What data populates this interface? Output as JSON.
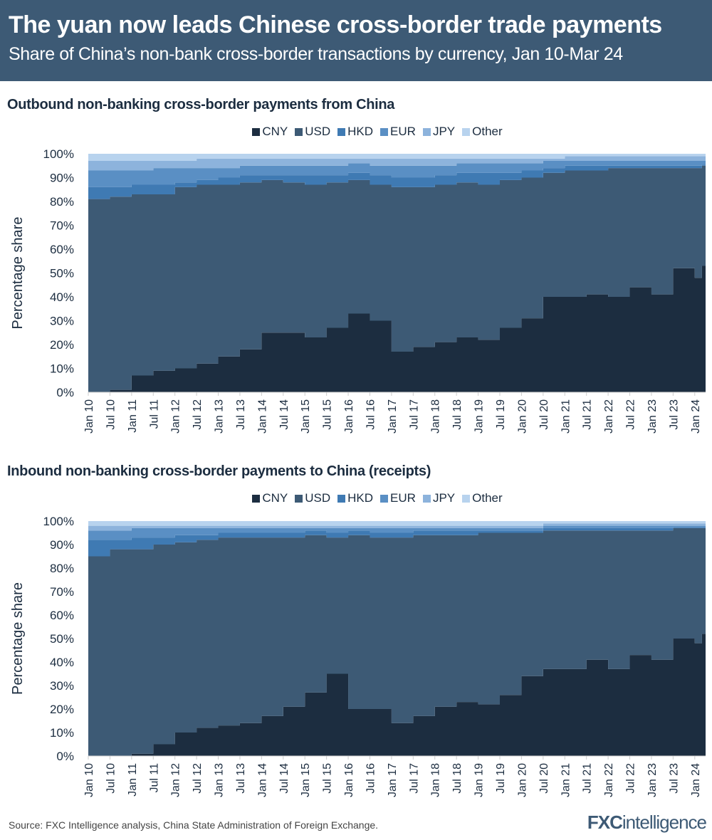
{
  "header": {
    "title": "The yuan now leads Chinese cross-border trade payments",
    "subtitle": "Share of China’s non-bank cross-border transactions by currency, Jan 10-Mar 24"
  },
  "colors": {
    "CNY": "#1c2d40",
    "USD": "#3d5a75",
    "HKD": "#3f7ab3",
    "EUR": "#5a8fc4",
    "JPY": "#8db3dc",
    "Other": "#b8d3ee"
  },
  "chart_data": [
    {
      "type": "area",
      "stacked": true,
      "title": "Outbound non-banking cross-border payments from China",
      "ylabel": "Percentage share",
      "ylim": [
        0,
        100
      ],
      "yticks": [
        "0%",
        "10%",
        "20%",
        "30%",
        "40%",
        "50%",
        "60%",
        "70%",
        "80%",
        "90%",
        "100%"
      ],
      "legend": "top",
      "x": [
        "Jan 10",
        "Jul 10",
        "Jan 11",
        "Jul 11",
        "Jan 12",
        "Jul 12",
        "Jan 13",
        "Jul 13",
        "Jan 14",
        "Jul 14",
        "Jan 15",
        "Jul 15",
        "Jan 16",
        "Jul 16",
        "Jan 17",
        "Jul 17",
        "Jan 18",
        "Jul 18",
        "Jan 19",
        "Jul 19",
        "Jan 20",
        "Jul 20",
        "Jan 21",
        "Jul 21",
        "Jan 22",
        "Jul 22",
        "Jan 23",
        "Jul 23",
        "Jan 24",
        "Mar 24"
      ],
      "xticks": [
        "Jan 10",
        "Jul 10",
        "Jan 11",
        "Jul 11",
        "Jan 12",
        "Jul 12",
        "Jan 13",
        "Jul 13",
        "Jan 14",
        "Jul 14",
        "Jan 15",
        "Jul 15",
        "Jan 16",
        "Jul 16",
        "Jan 17",
        "Jul 17",
        "Jan 18",
        "Jul 18",
        "Jan 19",
        "Jul 19",
        "Jan 20",
        "Jul 20",
        "Jan 21",
        "Jul 21",
        "Jan 22",
        "Jul 22",
        "Jan 23",
        "Jul 23",
        "Jan 24"
      ],
      "series": [
        {
          "name": "CNY",
          "values": [
            0,
            1,
            7,
            9,
            10,
            12,
            15,
            18,
            25,
            25,
            23,
            27,
            33,
            30,
            17,
            19,
            21,
            23,
            22,
            27,
            31,
            40,
            40,
            41,
            40,
            44,
            41,
            52,
            48,
            53
          ]
        },
        {
          "name": "USD",
          "values": [
            81,
            81,
            76,
            74,
            76,
            75,
            72,
            70,
            64,
            63,
            64,
            61,
            56,
            57,
            69,
            67,
            66,
            65,
            65,
            62,
            59,
            52,
            53,
            52,
            54,
            50,
            53,
            42,
            46,
            42
          ]
        },
        {
          "name": "HKD",
          "values": [
            5,
            4,
            4,
            4,
            2,
            2,
            3,
            3,
            2,
            3,
            4,
            3,
            3,
            4,
            4,
            4,
            4,
            4,
            5,
            3,
            3,
            2,
            2,
            2,
            1,
            1,
            1,
            1,
            1,
            0.5
          ]
        },
        {
          "name": "EUR",
          "values": [
            7,
            7,
            6,
            7,
            6,
            5,
            4,
            4,
            4,
            4,
            4,
            4,
            4,
            4,
            5,
            5,
            4,
            4,
            4,
            4,
            3,
            3,
            2,
            2,
            2,
            2,
            2,
            2,
            2,
            1.5
          ]
        },
        {
          "name": "JPY",
          "values": [
            4,
            4,
            4,
            3,
            3,
            4,
            4,
            3,
            3,
            3,
            3,
            3,
            2,
            3,
            3,
            3,
            3,
            2,
            2,
            2,
            2,
            1,
            2,
            2,
            2,
            2,
            2,
            2,
            2,
            2
          ]
        },
        {
          "name": "Other",
          "values": [
            3,
            3,
            3,
            3,
            3,
            2,
            2,
            2,
            2,
            2,
            2,
            2,
            2,
            2,
            2,
            2,
            2,
            2,
            2,
            2,
            2,
            2,
            1,
            1,
            1,
            1,
            1,
            1,
            1,
            1
          ]
        }
      ]
    },
    {
      "type": "area",
      "stacked": true,
      "title": "Inbound non-banking cross-border payments to China (receipts)",
      "ylabel": "Percentage share",
      "ylim": [
        0,
        100
      ],
      "yticks": [
        "0%",
        "10%",
        "20%",
        "30%",
        "40%",
        "50%",
        "60%",
        "70%",
        "80%",
        "90%",
        "100%"
      ],
      "legend": "top",
      "x": [
        "Jan 10",
        "Jul 10",
        "Jan 11",
        "Jul 11",
        "Jan 12",
        "Jul 12",
        "Jan 13",
        "Jul 13",
        "Jan 14",
        "Jul 14",
        "Jan 15",
        "Jul 15",
        "Jan 16",
        "Jul 16",
        "Jan 17",
        "Jul 17",
        "Jan 18",
        "Jul 18",
        "Jan 19",
        "Jul 19",
        "Jan 20",
        "Jul 20",
        "Jan 21",
        "Jul 21",
        "Jan 22",
        "Jul 22",
        "Jan 23",
        "Jul 23",
        "Jan 24",
        "Mar 24"
      ],
      "xticks": [
        "Jan 10",
        "Jul 10",
        "Jan 11",
        "Jul 11",
        "Jan 12",
        "Jul 12",
        "Jan 13",
        "Jul 13",
        "Jan 14",
        "Jul 14",
        "Jan 15",
        "Jul 15",
        "Jan 16",
        "Jul 16",
        "Jan 17",
        "Jul 17",
        "Jan 18",
        "Jul 18",
        "Jan 19",
        "Jul 19",
        "Jan 20",
        "Jul 20",
        "Jan 21",
        "Jul 21",
        "Jan 22",
        "Jul 22",
        "Jan 23",
        "Jul 23",
        "Jan 24"
      ],
      "series": [
        {
          "name": "CNY",
          "values": [
            0,
            0,
            1,
            5,
            10,
            12,
            13,
            14,
            17,
            21,
            27,
            35,
            20,
            20,
            14,
            17,
            21,
            23,
            22,
            26,
            34,
            37,
            37,
            41,
            37,
            43,
            41,
            50,
            48,
            52
          ]
        },
        {
          "name": "USD",
          "values": [
            85,
            88,
            87,
            85,
            81,
            80,
            80,
            79,
            76,
            72,
            67,
            58,
            74,
            73,
            79,
            77,
            73,
            71,
            73,
            69,
            61,
            59,
            59,
            55,
            59,
            53,
            55,
            47,
            49,
            45
          ]
        },
        {
          "name": "HKD",
          "values": [
            7,
            4,
            5,
            3,
            3,
            2,
            2,
            2,
            2,
            2,
            2,
            2,
            2,
            2,
            2,
            2,
            2,
            2,
            1,
            1,
            1,
            1,
            1,
            1,
            1,
            1,
            1,
            0.5,
            0.5,
            0.5
          ]
        },
        {
          "name": "EUR",
          "values": [
            4,
            4,
            4,
            4,
            3,
            3,
            2,
            2,
            2,
            2,
            1,
            2,
            1,
            2,
            2,
            1,
            1,
            1,
            1,
            1,
            1,
            1,
            1,
            1,
            1,
            1,
            1,
            0.5,
            0.5,
            0.5
          ]
        },
        {
          "name": "JPY",
          "values": [
            2,
            2,
            1,
            1,
            1,
            1,
            1,
            1,
            1,
            1,
            1,
            1,
            1,
            1,
            1,
            1,
            1,
            1,
            1,
            1,
            1,
            1,
            1,
            1,
            1,
            1,
            1,
            1,
            1,
            1
          ]
        },
        {
          "name": "Other",
          "values": [
            2,
            2,
            2,
            2,
            2,
            2,
            2,
            2,
            2,
            2,
            2,
            2,
            2,
            2,
            2,
            2,
            2,
            2,
            2,
            2,
            2,
            1,
            1,
            1,
            1,
            1,
            1,
            1,
            1,
            1
          ]
        }
      ]
    }
  ],
  "footer": {
    "source": "Source: FXC Intelligence analysis, China State Administration of Foreign Exchange.",
    "logo": "FXCintelligence"
  }
}
